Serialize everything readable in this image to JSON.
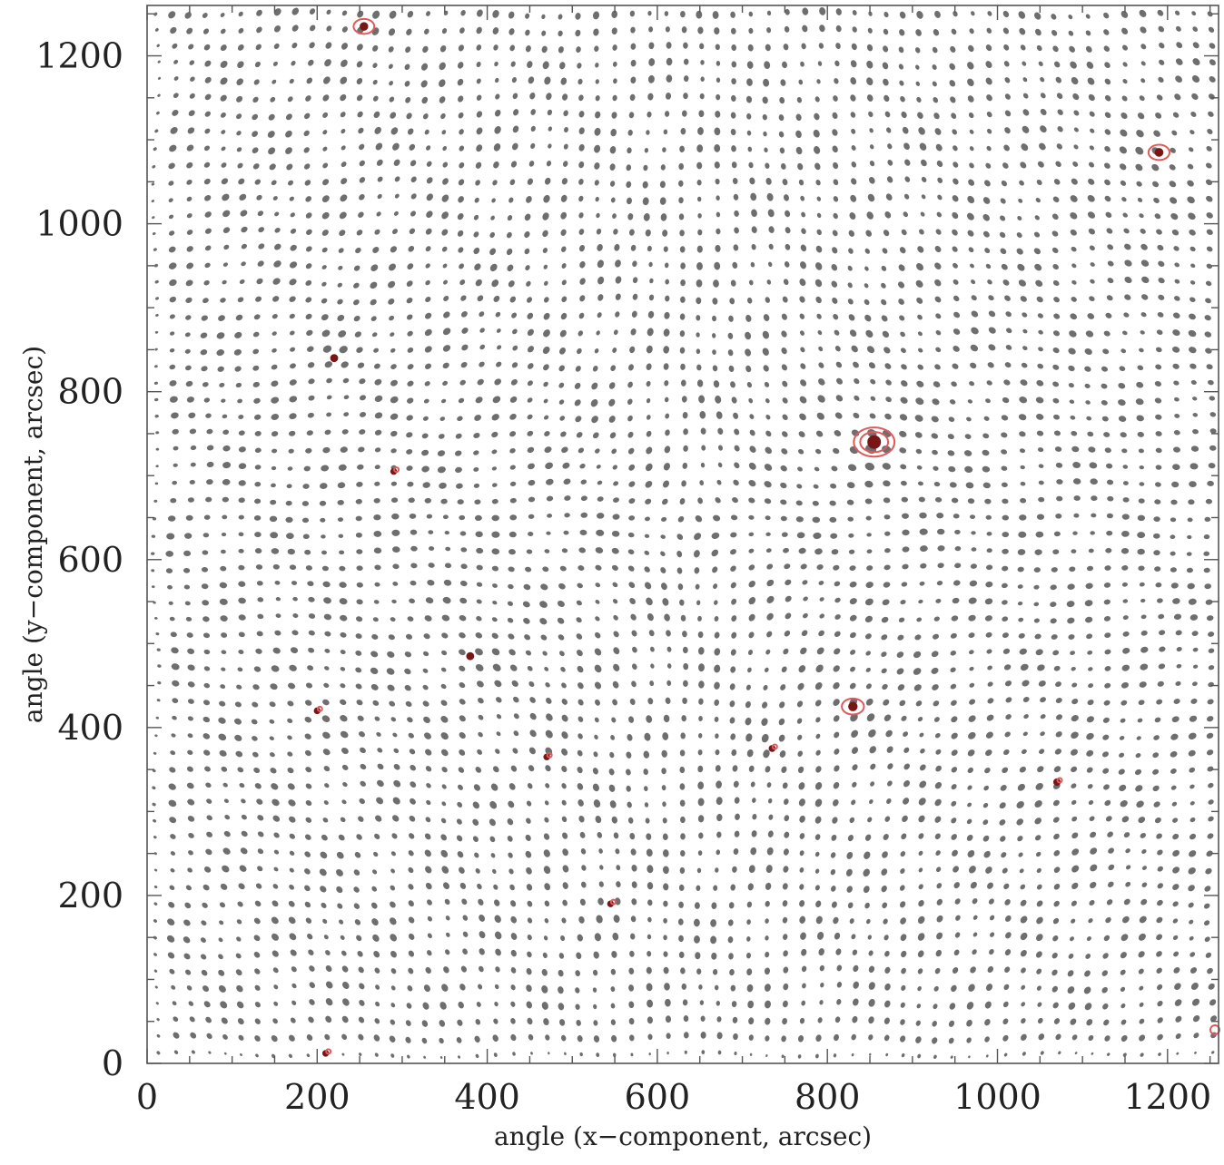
{
  "chart_data": {
    "type": "scatter",
    "description_kind": "distorted-grid",
    "xlabel": "angle (x−component, arcsec)",
    "ylabel": "angle (y−component, arcsec)",
    "xlim": [
      0,
      1260
    ],
    "ylim": [
      0,
      1260
    ],
    "xticks": [
      0,
      200,
      400,
      600,
      800,
      1000,
      1200
    ],
    "yticks": [
      0,
      200,
      400,
      600,
      800,
      1000,
      1200
    ],
    "xtick_labels": [
      "0",
      "200",
      "400",
      "600",
      "800",
      "1000",
      "1200"
    ],
    "ytick_labels": [
      "0",
      "200",
      "400",
      "600",
      "800",
      "1000",
      "1200"
    ],
    "grid_spacing": 20,
    "grid_extent": [
      10,
      1250
    ],
    "grid": false,
    "colors": {
      "points": "#6e6e6e",
      "lens_cores": "#7a1515",
      "contours": "#e05a5a"
    },
    "lenses": [
      {
        "x": 855,
        "y": 740,
        "strength": 3.2,
        "contour": 2
      },
      {
        "x": 830,
        "y": 425,
        "strength": 1.6,
        "contour": 1
      },
      {
        "x": 220,
        "y": 840,
        "strength": 1.0,
        "contour": 0
      },
      {
        "x": 380,
        "y": 485,
        "strength": 1.0,
        "contour": 0
      },
      {
        "x": 255,
        "y": 1235,
        "strength": 1.2,
        "contour": 1
      },
      {
        "x": 1190,
        "y": 1085,
        "strength": 1.3,
        "contour": 1
      },
      {
        "x": 1070,
        "y": 335,
        "strength": 0.8,
        "contour": 0
      },
      {
        "x": 735,
        "y": 375,
        "strength": 0.6,
        "contour": 0
      },
      {
        "x": 290,
        "y": 705,
        "strength": 0.5,
        "contour": 0
      },
      {
        "x": 545,
        "y": 190,
        "strength": 0.5,
        "contour": 0
      },
      {
        "x": 210,
        "y": 12,
        "strength": 0.5,
        "contour": 0
      },
      {
        "x": 1270,
        "y": 40,
        "strength": 0.6,
        "contour": 0
      },
      {
        "x": 200,
        "y": 420,
        "strength": 0.5,
        "contour": 0
      },
      {
        "x": 470,
        "y": 365,
        "strength": 0.5,
        "contour": 0
      }
    ]
  }
}
